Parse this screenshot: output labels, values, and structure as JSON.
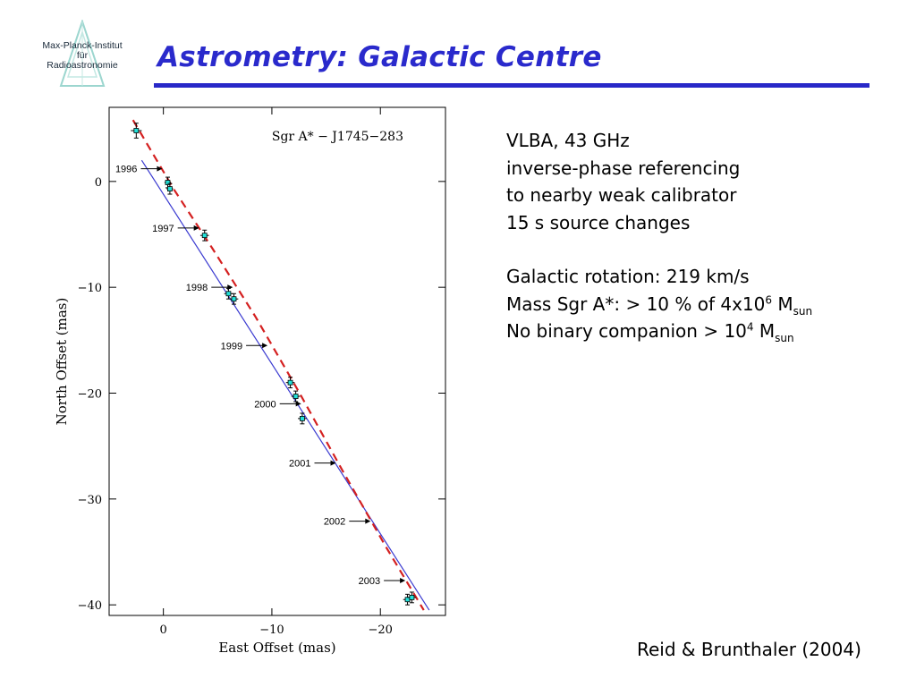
{
  "header": {
    "title": "Astrometry: Galactic Centre",
    "logo_lines": [
      "Max-Planck-Institut",
      "für",
      "Radioastronomie"
    ]
  },
  "info": {
    "line1": "VLBA, 43 GHz",
    "line2": "inverse-phase referencing",
    "line3": "to nearby weak calibrator",
    "line4": "15 s source changes",
    "line5": "Galactic rotation: 219 km/s",
    "mass_prefix": "Mass Sgr A*: > 10 % of 4x10",
    "mass_exp": "6",
    "mass_unit": "M",
    "mass_sub": "sun",
    "binary_prefix": "No binary companion > 10",
    "binary_exp": "4",
    "binary_unit": "M",
    "binary_sub": "sun"
  },
  "citation": "Reid & Brunthaler (2004)",
  "colors": {
    "title": "#2a2acc",
    "fit_line": "#3a3ad0",
    "model_curve": "#d42020",
    "point_fill": "#22e0d8"
  },
  "chart_data": {
    "type": "scatter",
    "title": "Sgr A* − J1745−283",
    "xlabel": "East Offset (mas)",
    "ylabel": "North Offset (mas)",
    "xlim": [
      5,
      -26
    ],
    "ylim": [
      -41,
      7
    ],
    "xticks": [
      0,
      -10,
      -20
    ],
    "xtick_labels": [
      "0",
      "−10",
      "−20"
    ],
    "yticks": [
      0,
      -10,
      -20,
      -30,
      -40
    ],
    "ytick_labels": [
      "0",
      "−10",
      "−20",
      "−30",
      "−40"
    ],
    "grid": false,
    "points": [
      {
        "x": 2.5,
        "y": 4.8,
        "xerr": 0.5,
        "yerr": 0.7
      },
      {
        "x": -0.4,
        "y": -0.1,
        "xerr": 0.3,
        "yerr": 0.5
      },
      {
        "x": -0.6,
        "y": -0.7,
        "xerr": 0.3,
        "yerr": 0.5
      },
      {
        "x": -3.8,
        "y": -5.1,
        "xerr": 0.4,
        "yerr": 0.5
      },
      {
        "x": -6.0,
        "y": -10.6,
        "xerr": 0.4,
        "yerr": 0.5
      },
      {
        "x": -6.5,
        "y": -11.1,
        "xerr": 0.4,
        "yerr": 0.5
      },
      {
        "x": -11.7,
        "y": -19.0,
        "xerr": 0.4,
        "yerr": 0.5
      },
      {
        "x": -12.2,
        "y": -20.3,
        "xerr": 0.4,
        "yerr": 0.5
      },
      {
        "x": -12.8,
        "y": -22.4,
        "xerr": 0.4,
        "yerr": 0.5
      },
      {
        "x": -22.5,
        "y": -39.5,
        "xerr": 0.4,
        "yerr": 0.5
      },
      {
        "x": -22.9,
        "y": -39.3,
        "xerr": 0.4,
        "yerr": 0.5
      }
    ],
    "fit_line": {
      "x": [
        2.0,
        -24.5
      ],
      "y": [
        2.0,
        -40.5
      ]
    },
    "model_curve": {
      "x": [
        2.8,
        -1.0,
        -4.5,
        -8.5,
        -12.5,
        -16.5,
        -20.5,
        -24.0
      ],
      "y": [
        5.8,
        -0.8,
        -6.3,
        -12.8,
        -19.9,
        -27.3,
        -34.5,
        -40.5
      ]
    },
    "epochs": [
      {
        "label": "1996",
        "x": 0.1,
        "y": 1.2
      },
      {
        "label": "1997",
        "x": -3.3,
        "y": -4.4
      },
      {
        "label": "1998",
        "x": -6.4,
        "y": -10.0
      },
      {
        "label": "1999",
        "x": -9.6,
        "y": -15.5
      },
      {
        "label": "2000",
        "x": -12.7,
        "y": -21.0
      },
      {
        "label": "2001",
        "x": -15.9,
        "y": -26.6
      },
      {
        "label": "2002",
        "x": -19.1,
        "y": -32.1
      },
      {
        "label": "2003",
        "x": -22.3,
        "y": -37.7
      }
    ]
  }
}
